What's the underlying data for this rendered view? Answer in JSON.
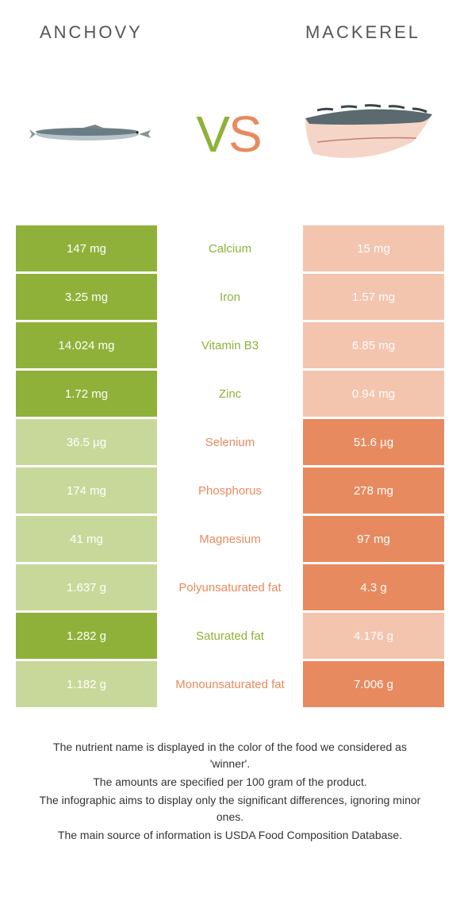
{
  "header": {
    "left": "ANCHOVY",
    "right": "MACKEREL"
  },
  "colors": {
    "anchovy": "#8fb13a",
    "mackerel": "#e88a5f",
    "vs_v": "#8fb13a",
    "vs_s": "#e88a5f",
    "anchovy_dim": "#c8d89a",
    "mackerel_dim": "#f3c4ae"
  },
  "vs": {
    "v": "V",
    "s": "S"
  },
  "rows": [
    {
      "nutrient": "Calcium",
      "left": "147 mg",
      "right": "15 mg",
      "winner": "left"
    },
    {
      "nutrient": "Iron",
      "left": "3.25 mg",
      "right": "1.57 mg",
      "winner": "left"
    },
    {
      "nutrient": "Vitamin B3",
      "left": "14.024 mg",
      "right": "6.85 mg",
      "winner": "left"
    },
    {
      "nutrient": "Zinc",
      "left": "1.72 mg",
      "right": "0.94 mg",
      "winner": "left"
    },
    {
      "nutrient": "Selenium",
      "left": "36.5 µg",
      "right": "51.6 µg",
      "winner": "right"
    },
    {
      "nutrient": "Phosphorus",
      "left": "174 mg",
      "right": "278 mg",
      "winner": "right"
    },
    {
      "nutrient": "Magnesium",
      "left": "41 mg",
      "right": "97 mg",
      "winner": "right"
    },
    {
      "nutrient": "Polyunsaturated fat",
      "left": "1.637 g",
      "right": "4.3 g",
      "winner": "right"
    },
    {
      "nutrient": "Saturated fat",
      "left": "1.282 g",
      "right": "4.176 g",
      "winner": "left"
    },
    {
      "nutrient": "Monounsaturated fat",
      "left": "1.182 g",
      "right": "7.006 g",
      "winner": "right"
    }
  ],
  "notes": [
    "The nutrient name is displayed in the color of the food we considered as 'winner'.",
    "The amounts are specified per 100 gram of the product.",
    "The infographic aims to display only the significant differences, ignoring minor ones.",
    "The main source of information is USDA Food Composition Database."
  ]
}
